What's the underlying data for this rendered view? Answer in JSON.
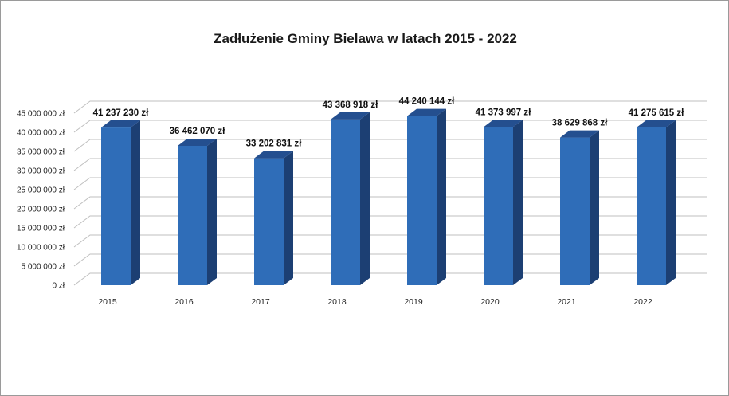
{
  "colors": {
    "bar_front": "#2f6db8",
    "bar_side": "#1c3f73",
    "bar_top": "#244f8f",
    "grid": "#bfbfbf"
  },
  "chart_data": {
    "type": "bar",
    "title": "Zadłużenie Gminy Bielawa w latach 2015 - 2022",
    "xlabel": "",
    "ylabel": "",
    "style": "3d-column",
    "grid": true,
    "legend": "none",
    "ylim": [
      0,
      45000000
    ],
    "yticks": [
      0,
      5000000,
      10000000,
      15000000,
      20000000,
      25000000,
      30000000,
      35000000,
      40000000,
      45000000
    ],
    "ytick_labels": [
      "0 zł",
      "5 000 000 zł",
      "10 000 000 zł",
      "15 000 000 zł",
      "20 000 000 zł",
      "25 000 000 zł",
      "30 000 000 zł",
      "35 000 000 zł",
      "40 000 000 zł",
      "45 000 000 zł"
    ],
    "categories": [
      "2015",
      "2016",
      "2017",
      "2018",
      "2019",
      "2020",
      "2021",
      "2022"
    ],
    "values": [
      41237230,
      36462070,
      33202831,
      43368918,
      44240144,
      41373997,
      38629868,
      41275615
    ],
    "data_labels": [
      "41 237 230 zł",
      "36 462 070 zł",
      "33 202 831 zł",
      "43 368 918 zł",
      "44 240 144 zł",
      "41 373 997 zł",
      "38 629 868 zł",
      "41 275 615 zł"
    ]
  }
}
